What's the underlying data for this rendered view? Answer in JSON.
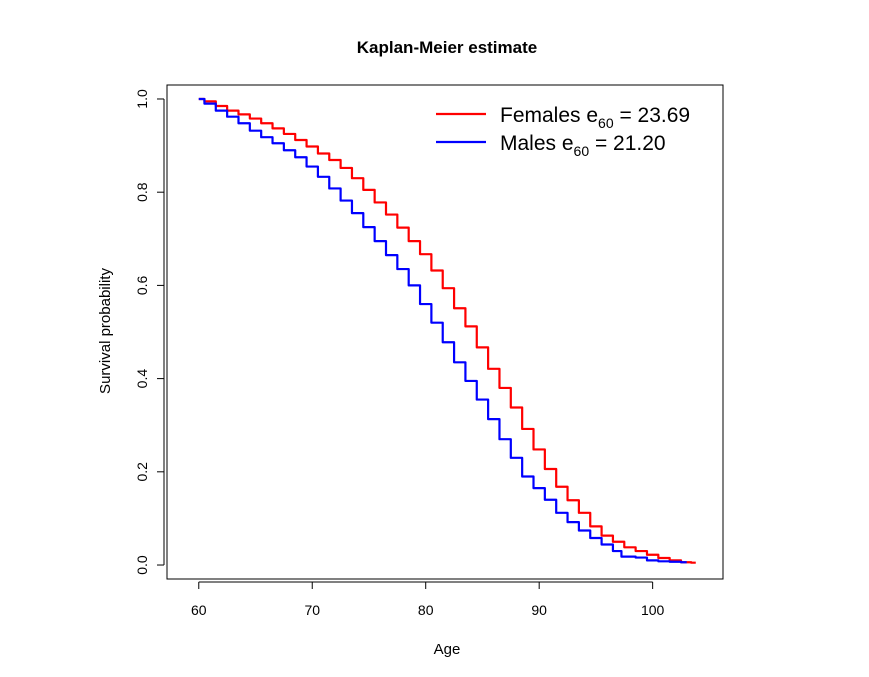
{
  "chart_data": {
    "type": "line",
    "title": "Kaplan-Meier estimate",
    "xlabel": "Age",
    "ylabel": "Survival probability",
    "xlim": [
      57.2,
      106.2
    ],
    "ylim": [
      -0.03,
      1.03
    ],
    "xticks": [
      60,
      70,
      80,
      90,
      100
    ],
    "yticks": [
      0.0,
      0.2,
      0.4,
      0.6,
      0.8,
      1.0
    ],
    "ytick_labels": [
      "0.0",
      "0.2",
      "0.4",
      "0.6",
      "0.8",
      "1.0"
    ],
    "grid": false,
    "legend_position": "top-right",
    "series": [
      {
        "name": "Females",
        "legend_prefix": "Females e",
        "legend_subscript": "60",
        "legend_value": " = 23.69",
        "color": "#ff0000",
        "x": [
          60,
          61,
          62,
          63,
          64,
          65,
          66,
          67,
          68,
          69,
          70,
          71,
          72,
          73,
          74,
          75,
          76,
          77,
          78,
          79,
          80,
          81,
          82,
          83,
          84,
          85,
          86,
          87,
          88,
          89,
          90,
          91,
          92,
          93,
          94,
          95,
          96,
          97,
          98,
          99,
          100,
          101,
          102,
          103,
          103.8
        ],
        "y": [
          1.0,
          0.995,
          0.985,
          0.975,
          0.967,
          0.958,
          0.948,
          0.937,
          0.925,
          0.912,
          0.898,
          0.883,
          0.869,
          0.852,
          0.83,
          0.805,
          0.778,
          0.752,
          0.724,
          0.695,
          0.667,
          0.632,
          0.594,
          0.551,
          0.512,
          0.467,
          0.421,
          0.38,
          0.338,
          0.292,
          0.248,
          0.206,
          0.168,
          0.139,
          0.112,
          0.083,
          0.063,
          0.05,
          0.038,
          0.03,
          0.022,
          0.015,
          0.01,
          0.006,
          0.005
        ]
      },
      {
        "name": "Males",
        "legend_prefix": "Males e",
        "legend_subscript": "60",
        "legend_value": " = 21.20",
        "color": "#0000ff",
        "x": [
          60,
          61,
          62,
          63,
          64,
          65,
          66,
          67,
          68,
          69,
          70,
          71,
          72,
          73,
          74,
          75,
          76,
          77,
          78,
          79,
          80,
          81,
          82,
          83,
          84,
          85,
          86,
          87,
          88,
          89,
          90,
          91,
          92,
          93,
          94,
          95,
          96,
          97,
          97.5,
          98,
          99,
          100,
          101,
          102,
          103
        ],
        "y": [
          1.0,
          0.99,
          0.975,
          0.962,
          0.948,
          0.932,
          0.918,
          0.905,
          0.89,
          0.875,
          0.855,
          0.833,
          0.808,
          0.782,
          0.755,
          0.725,
          0.695,
          0.665,
          0.635,
          0.6,
          0.56,
          0.52,
          0.478,
          0.435,
          0.395,
          0.355,
          0.313,
          0.27,
          0.23,
          0.19,
          0.165,
          0.14,
          0.112,
          0.092,
          0.074,
          0.058,
          0.044,
          0.03,
          0.018,
          0.018,
          0.016,
          0.01,
          0.008,
          0.007,
          0.006
        ]
      }
    ]
  }
}
